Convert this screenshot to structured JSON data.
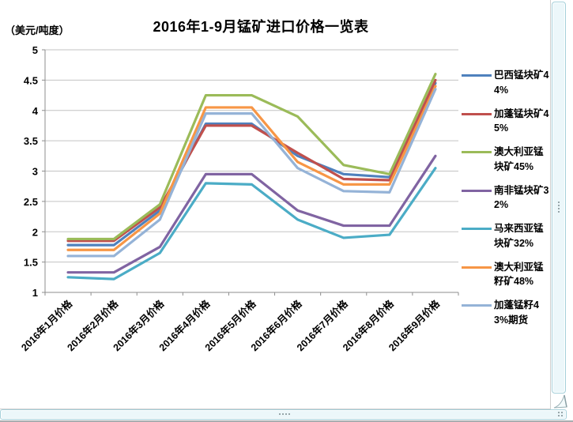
{
  "chart_data": {
    "type": "line",
    "title": "2016年1-9月锰矿进口价格一览表",
    "unit_label": "（美元/吨度）",
    "categories": [
      "2016年1月价格",
      "2016年2月价格",
      "2016年3月价格",
      "2016年4月价格",
      "2016年5月价格",
      "2016年6月价格",
      "2016年7月价格",
      "2016年8月价格",
      "2016年9月价格"
    ],
    "series": [
      {
        "name": "巴西锰块矿44%",
        "color": "#4F81BD",
        "values": [
          1.78,
          1.78,
          2.35,
          3.78,
          3.78,
          3.25,
          2.95,
          2.9,
          4.45
        ]
      },
      {
        "name": "加蓬锰块矿45%",
        "color": "#C0504D",
        "values": [
          1.85,
          1.85,
          2.4,
          3.75,
          3.75,
          3.3,
          2.87,
          2.85,
          4.5
        ]
      },
      {
        "name": "澳大利亚锰块矿45%",
        "color": "#9BBB59",
        "values": [
          1.88,
          1.88,
          2.45,
          4.25,
          4.25,
          3.9,
          3.1,
          2.95,
          4.6
        ]
      },
      {
        "name": "南非锰块矿32%",
        "color": "#8064A2",
        "values": [
          1.33,
          1.33,
          1.75,
          2.95,
          2.95,
          2.35,
          2.1,
          2.1,
          3.25
        ]
      },
      {
        "name": "马来西亚锰块矿32%",
        "color": "#4BACC6",
        "values": [
          1.25,
          1.22,
          1.65,
          2.8,
          2.78,
          2.2,
          1.9,
          1.95,
          3.05
        ]
      },
      {
        "name": "澳大利亚锰籽矿48%",
        "color": "#F79646",
        "values": [
          1.7,
          1.7,
          2.3,
          4.05,
          4.05,
          3.15,
          2.78,
          2.78,
          4.4
        ]
      },
      {
        "name": "加蓬锰籽43%期货",
        "color": "#95B3D7",
        "values": [
          1.6,
          1.6,
          2.2,
          3.95,
          3.95,
          3.05,
          2.67,
          2.65,
          4.35
        ]
      }
    ],
    "ylim": [
      1,
      5
    ],
    "ytick_step": 0.5,
    "grid": true,
    "legend_position": "right",
    "x_label_rotation": -45
  }
}
